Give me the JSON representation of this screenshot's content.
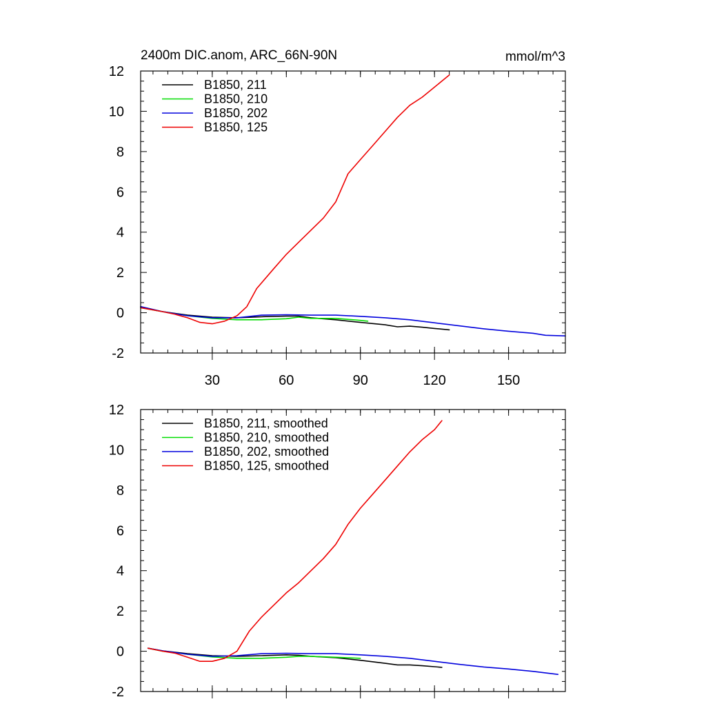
{
  "colors": {
    "s211": "#000000",
    "s210": "#00dd00",
    "s202": "#0000dd",
    "s125": "#ee0000"
  },
  "chart_data": [
    {
      "type": "line",
      "title": "2400m DIC.anom, ARC_66N-90N",
      "units": "mmol/m^3",
      "xlabel": "",
      "ylabel": "",
      "xlim": [
        1,
        173
      ],
      "ylim": [
        -2,
        12
      ],
      "xticks": [
        30,
        60,
        90,
        120,
        150
      ],
      "yticks": [
        -2,
        0,
        2,
        4,
        6,
        8,
        10,
        12
      ],
      "show_x_tick_labels": true,
      "grid": false,
      "legend_position": "top-left",
      "series": [
        {
          "name": "B1850, 211",
          "color_key": "s211",
          "x": [
            1,
            10,
            20,
            30,
            40,
            50,
            60,
            65,
            70,
            80,
            90,
            100,
            105,
            110,
            115,
            120,
            126
          ],
          "y": [
            0.3,
            0.05,
            -0.12,
            -0.22,
            -0.25,
            -0.2,
            -0.17,
            -0.17,
            -0.25,
            -0.35,
            -0.48,
            -0.6,
            -0.7,
            -0.67,
            -0.72,
            -0.78,
            -0.85
          ]
        },
        {
          "name": "B1850, 210",
          "color_key": "s210",
          "x": [
            1,
            10,
            20,
            30,
            40,
            50,
            60,
            65,
            70,
            80,
            85,
            90,
            93
          ],
          "y": [
            0.25,
            0.05,
            -0.15,
            -0.28,
            -0.35,
            -0.35,
            -0.3,
            -0.22,
            -0.28,
            -0.28,
            -0.33,
            -0.38,
            -0.42
          ]
        },
        {
          "name": "B1850, 202",
          "color_key": "s202",
          "x": [
            1,
            10,
            20,
            30,
            40,
            50,
            60,
            70,
            80,
            90,
            100,
            110,
            120,
            130,
            140,
            150,
            160,
            165,
            173
          ],
          "y": [
            0.3,
            0.05,
            -0.15,
            -0.25,
            -0.25,
            -0.12,
            -0.1,
            -0.12,
            -0.12,
            -0.18,
            -0.25,
            -0.35,
            -0.5,
            -0.65,
            -0.8,
            -0.92,
            -1.02,
            -1.12,
            -1.15
          ]
        },
        {
          "name": "B1850, 125",
          "color_key": "s125",
          "x": [
            1,
            10,
            15,
            20,
            25,
            30,
            35,
            40,
            44,
            48,
            55,
            60,
            65,
            70,
            75,
            80,
            85,
            90,
            95,
            100,
            105,
            110,
            115,
            120,
            126
          ],
          "y": [
            0.25,
            0.05,
            -0.08,
            -0.25,
            -0.48,
            -0.55,
            -0.42,
            -0.15,
            0.3,
            1.2,
            2.2,
            2.9,
            3.5,
            4.1,
            4.7,
            5.5,
            6.9,
            7.6,
            8.3,
            9.0,
            9.7,
            10.3,
            10.7,
            11.2,
            11.8
          ]
        }
      ]
    },
    {
      "type": "line",
      "title": "",
      "units": "",
      "xlabel": "",
      "ylabel": "",
      "xlim": [
        1,
        173
      ],
      "ylim": [
        -2,
        12
      ],
      "xticks": [
        30,
        60,
        90,
        120,
        150
      ],
      "yticks": [
        -2,
        0,
        2,
        4,
        6,
        8,
        10,
        12
      ],
      "show_x_tick_labels": false,
      "grid": false,
      "legend_position": "top-left",
      "series": [
        {
          "name": "B1850, 211, smoothed",
          "color_key": "s211",
          "x": [
            4,
            10,
            20,
            30,
            40,
            50,
            60,
            65,
            70,
            80,
            90,
            100,
            105,
            110,
            115,
            123
          ],
          "y": [
            0.15,
            0.02,
            -0.12,
            -0.22,
            -0.25,
            -0.22,
            -0.18,
            -0.2,
            -0.25,
            -0.32,
            -0.45,
            -0.6,
            -0.68,
            -0.68,
            -0.72,
            -0.8
          ]
        },
        {
          "name": "B1850, 210, smoothed",
          "color_key": "s210",
          "x": [
            4,
            10,
            20,
            30,
            40,
            50,
            60,
            65,
            70,
            80,
            90
          ],
          "y": [
            0.15,
            0.0,
            -0.15,
            -0.28,
            -0.35,
            -0.35,
            -0.3,
            -0.25,
            -0.25,
            -0.3,
            -0.35
          ]
        },
        {
          "name": "B1850, 202, smoothed",
          "color_key": "s202",
          "x": [
            4,
            10,
            20,
            30,
            40,
            50,
            60,
            70,
            80,
            90,
            100,
            110,
            120,
            130,
            140,
            150,
            160,
            170
          ],
          "y": [
            0.15,
            0.02,
            -0.15,
            -0.25,
            -0.22,
            -0.12,
            -0.1,
            -0.12,
            -0.12,
            -0.18,
            -0.25,
            -0.35,
            -0.5,
            -0.65,
            -0.78,
            -0.88,
            -1.0,
            -1.15
          ]
        },
        {
          "name": "B1850, 125, smoothed",
          "color_key": "s125",
          "x": [
            4,
            10,
            15,
            20,
            25,
            30,
            35,
            40,
            45,
            50,
            55,
            60,
            65,
            70,
            75,
            80,
            85,
            90,
            95,
            100,
            105,
            110,
            115,
            120,
            123
          ],
          "y": [
            0.15,
            0.0,
            -0.1,
            -0.3,
            -0.5,
            -0.5,
            -0.35,
            0.0,
            1.0,
            1.7,
            2.3,
            2.9,
            3.4,
            4.0,
            4.6,
            5.3,
            6.3,
            7.1,
            7.8,
            8.5,
            9.2,
            9.9,
            10.5,
            11.0,
            11.45
          ]
        }
      ]
    }
  ]
}
